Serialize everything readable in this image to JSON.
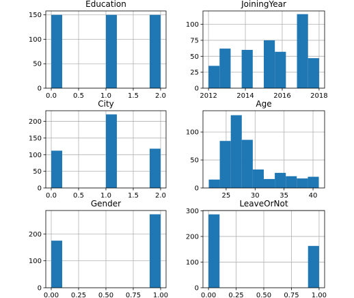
{
  "figure": {
    "background": "#ffffff",
    "bar_color": "#1f77b4",
    "grid": true
  },
  "chart_data": [
    {
      "type": "bar",
      "title": "Education",
      "xlim": [
        -0.1,
        2.1
      ],
      "ylim": [
        0,
        158
      ],
      "xticks": [
        0.0,
        0.5,
        1.0,
        1.5,
        2.0
      ],
      "xtick_labels": [
        "0.0",
        "0.5",
        "1.0",
        "1.5",
        "2.0"
      ],
      "yticks": [
        0,
        50,
        100,
        150
      ],
      "ytick_labels": [
        "0",
        "50",
        "100",
        "150"
      ],
      "bars": [
        {
          "x0": 0.0,
          "x1": 0.2,
          "value": 150
        },
        {
          "x0": 1.0,
          "x1": 1.2,
          "value": 150
        },
        {
          "x0": 1.8,
          "x1": 2.0,
          "value": 150
        }
      ]
    },
    {
      "type": "bar",
      "title": "JoiningYear",
      "xlim": [
        2011.7,
        2018.3
      ],
      "ylim": [
        0,
        121
      ],
      "xticks": [
        2012,
        2014,
        2016,
        2018
      ],
      "xtick_labels": [
        "2012",
        "2014",
        "2016",
        "2018"
      ],
      "yticks": [
        0,
        25,
        50,
        75,
        100
      ],
      "ytick_labels": [
        "0",
        "25",
        "50",
        "75",
        "100"
      ],
      "bars": [
        {
          "x0": 2012.0,
          "x1": 2012.6,
          "value": 35
        },
        {
          "x0": 2012.6,
          "x1": 2013.2,
          "value": 62
        },
        {
          "x0": 2013.8,
          "x1": 2014.4,
          "value": 60
        },
        {
          "x0": 2015.0,
          "x1": 2015.6,
          "value": 75
        },
        {
          "x0": 2015.6,
          "x1": 2016.2,
          "value": 57
        },
        {
          "x0": 2016.8,
          "x1": 2017.4,
          "value": 116
        },
        {
          "x0": 2017.4,
          "x1": 2018.0,
          "value": 47
        }
      ]
    },
    {
      "type": "bar",
      "title": "City",
      "xlim": [
        -0.1,
        2.1
      ],
      "ylim": [
        0,
        232
      ],
      "xticks": [
        0.0,
        0.5,
        1.0,
        1.5,
        2.0
      ],
      "xtick_labels": [
        "0.0",
        "0.5",
        "1.0",
        "1.5",
        "2.0"
      ],
      "yticks": [
        0,
        50,
        100,
        150,
        200
      ],
      "ytick_labels": [
        "0",
        "50",
        "100",
        "150",
        "200"
      ],
      "bars": [
        {
          "x0": 0.0,
          "x1": 0.2,
          "value": 112
        },
        {
          "x0": 1.0,
          "x1": 1.2,
          "value": 221
        },
        {
          "x0": 1.8,
          "x1": 2.0,
          "value": 118
        }
      ]
    },
    {
      "type": "bar",
      "title": "Age",
      "xlim": [
        21.0,
        42.0
      ],
      "ylim": [
        0,
        138
      ],
      "xticks": [
        25,
        30,
        35,
        40
      ],
      "xtick_labels": [
        "25",
        "30",
        "35",
        "40"
      ],
      "yticks": [
        0,
        50,
        100
      ],
      "ytick_labels": [
        "0",
        "50",
        "100"
      ],
      "bars": [
        {
          "x0": 22.0,
          "x1": 23.9,
          "value": 15
        },
        {
          "x0": 23.9,
          "x1": 25.8,
          "value": 84
        },
        {
          "x0": 25.8,
          "x1": 27.7,
          "value": 130
        },
        {
          "x0": 27.7,
          "x1": 29.6,
          "value": 86
        },
        {
          "x0": 29.6,
          "x1": 31.5,
          "value": 33
        },
        {
          "x0": 31.5,
          "x1": 33.4,
          "value": 16
        },
        {
          "x0": 33.4,
          "x1": 35.3,
          "value": 27
        },
        {
          "x0": 35.3,
          "x1": 37.2,
          "value": 21
        },
        {
          "x0": 37.2,
          "x1": 39.1,
          "value": 17
        },
        {
          "x0": 39.1,
          "x1": 41.0,
          "value": 20
        }
      ]
    },
    {
      "type": "bar",
      "title": "Gender",
      "xlim": [
        -0.05,
        1.05
      ],
      "ylim": [
        0,
        287
      ],
      "xticks": [
        0.0,
        0.25,
        0.5,
        0.75,
        1.0
      ],
      "xtick_labels": [
        "0.00",
        "0.25",
        "0.50",
        "0.75",
        "1.00"
      ],
      "yticks": [
        0,
        100,
        200
      ],
      "ytick_labels": [
        "0",
        "100",
        "200"
      ],
      "bars": [
        {
          "x0": 0.0,
          "x1": 0.1,
          "value": 175
        },
        {
          "x0": 0.9,
          "x1": 1.0,
          "value": 273
        }
      ]
    },
    {
      "type": "bar",
      "title": "LeaveOrNot",
      "xlim": [
        -0.05,
        1.05
      ],
      "ylim": [
        0,
        301
      ],
      "xticks": [
        0.0,
        0.25,
        0.5,
        0.75,
        1.0
      ],
      "xtick_labels": [
        "0.00",
        "0.25",
        "0.50",
        "0.75",
        "1.00"
      ],
      "yticks": [
        0,
        100,
        200,
        300
      ],
      "ytick_labels": [
        "0",
        "100",
        "200",
        "300"
      ],
      "bars": [
        {
          "x0": 0.0,
          "x1": 0.1,
          "value": 286
        },
        {
          "x0": 0.9,
          "x1": 1.0,
          "value": 163
        }
      ]
    }
  ]
}
